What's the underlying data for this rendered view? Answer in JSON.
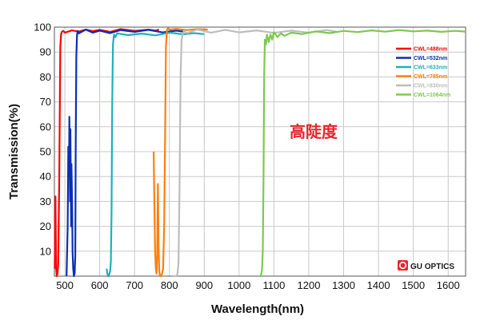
{
  "chart_data": {
    "type": "line",
    "xlabel": "Wavelength(nm)",
    "ylabel": "Transmission(%)",
    "xlim": [
      470,
      1650
    ],
    "ylim": [
      0,
      100
    ],
    "xticks": [
      500,
      600,
      700,
      800,
      900,
      1000,
      1100,
      1200,
      1300,
      1400,
      1500,
      1600
    ],
    "yticks": [
      10,
      20,
      30,
      40,
      50,
      60,
      70,
      80,
      90,
      100
    ],
    "grid": true,
    "legend_position": "top-right",
    "annotation": "高陡度",
    "logo_text": "GU OPTICS",
    "series": [
      {
        "name": "CWL=488nm",
        "color": "#ff0000",
        "x": [
          471,
          473,
          475,
          477,
          479,
          481,
          484,
          487,
          489,
          491,
          495,
          500,
          520,
          540,
          560,
          580,
          600,
          630,
          660,
          700,
          740,
          760,
          770
        ],
        "y": [
          3,
          32,
          3,
          0,
          1,
          5,
          40,
          92,
          97,
          98,
          98.5,
          97.8,
          98.7,
          98.2,
          99,
          98.4,
          98.9,
          98.1,
          99.2,
          98.5,
          99,
          98.6,
          99
        ]
      },
      {
        "name": "CWL=532nm",
        "color": "#0a2fb4",
        "x": [
          505,
          508,
          510,
          512,
          513,
          515,
          516,
          518,
          519,
          521,
          522,
          524,
          526,
          528,
          530,
          531,
          533,
          535,
          537,
          540,
          560,
          580,
          600,
          630,
          660,
          700,
          740,
          780,
          820,
          840
        ],
        "y": [
          0,
          20,
          52,
          40,
          64,
          30,
          59,
          20,
          45,
          28,
          10,
          3,
          0,
          1,
          8,
          50,
          88,
          97,
          98.5,
          97.5,
          99,
          97.8,
          98.6,
          97.6,
          98.8,
          98.1,
          98.9,
          97.9,
          98.6,
          98.2
        ]
      },
      {
        "name": "CWL=633nm",
        "color": "#1fb0bc",
        "x": [
          620,
          622,
          624,
          626,
          628,
          630,
          632,
          634,
          636,
          638,
          641,
          645,
          650,
          680,
          720,
          760,
          800,
          840,
          870,
          900
        ],
        "y": [
          3,
          1,
          0,
          0,
          1,
          2,
          6,
          25,
          70,
          93,
          97,
          96,
          97.5,
          96.8,
          97.4,
          96.7,
          97.8,
          97.1,
          97.6,
          97.2
        ]
      },
      {
        "name": "CWL=785nm",
        "color": "#ff7f0e",
        "x": [
          755,
          757,
          759,
          761,
          763,
          765,
          767,
          769,
          771,
          773,
          776,
          779,
          782,
          785,
          788,
          790,
          793,
          796,
          800,
          820,
          850,
          880,
          910
        ],
        "y": [
          50,
          28,
          10,
          3,
          1,
          8,
          37,
          12,
          2,
          0,
          0,
          1,
          3,
          20,
          60,
          92,
          99,
          99.5,
          99,
          99.3,
          98.8,
          99.2,
          99
        ]
      },
      {
        "name": "CWL=830nm",
        "color": "#bdbdbd",
        "x": [
          810,
          815,
          820,
          823,
          826,
          829,
          832,
          835,
          838,
          842,
          850,
          880,
          920,
          960,
          1000,
          1050,
          1100,
          1150,
          1200,
          1250,
          1280
        ],
        "y": [
          0,
          0,
          0,
          1,
          5,
          35,
          80,
          95,
          97,
          98.5,
          97.6,
          99,
          97.8,
          98.9,
          97.9,
          98.7,
          97.7,
          98.6,
          97.8,
          98.8,
          98.2
        ]
      },
      {
        "name": "CWL=1064nm",
        "color": "#7ec850",
        "x": [
          1060,
          1062,
          1064,
          1066,
          1068,
          1070,
          1072,
          1074,
          1077,
          1080,
          1085,
          1090,
          1095,
          1100,
          1110,
          1120,
          1130,
          1150,
          1180,
          1220,
          1260,
          1300,
          1340,
          1380,
          1420,
          1460,
          1500,
          1540,
          1580,
          1620,
          1650
        ],
        "y": [
          0,
          0,
          1,
          3,
          10,
          40,
          80,
          95,
          93,
          97,
          94,
          97,
          95,
          98,
          96,
          97.5,
          96.5,
          97.8,
          97.2,
          98.3,
          97.6,
          98.5,
          98,
          98.7,
          98.2,
          98.8,
          98.3,
          98.6,
          98.1,
          98.5,
          98.2
        ]
      }
    ]
  }
}
